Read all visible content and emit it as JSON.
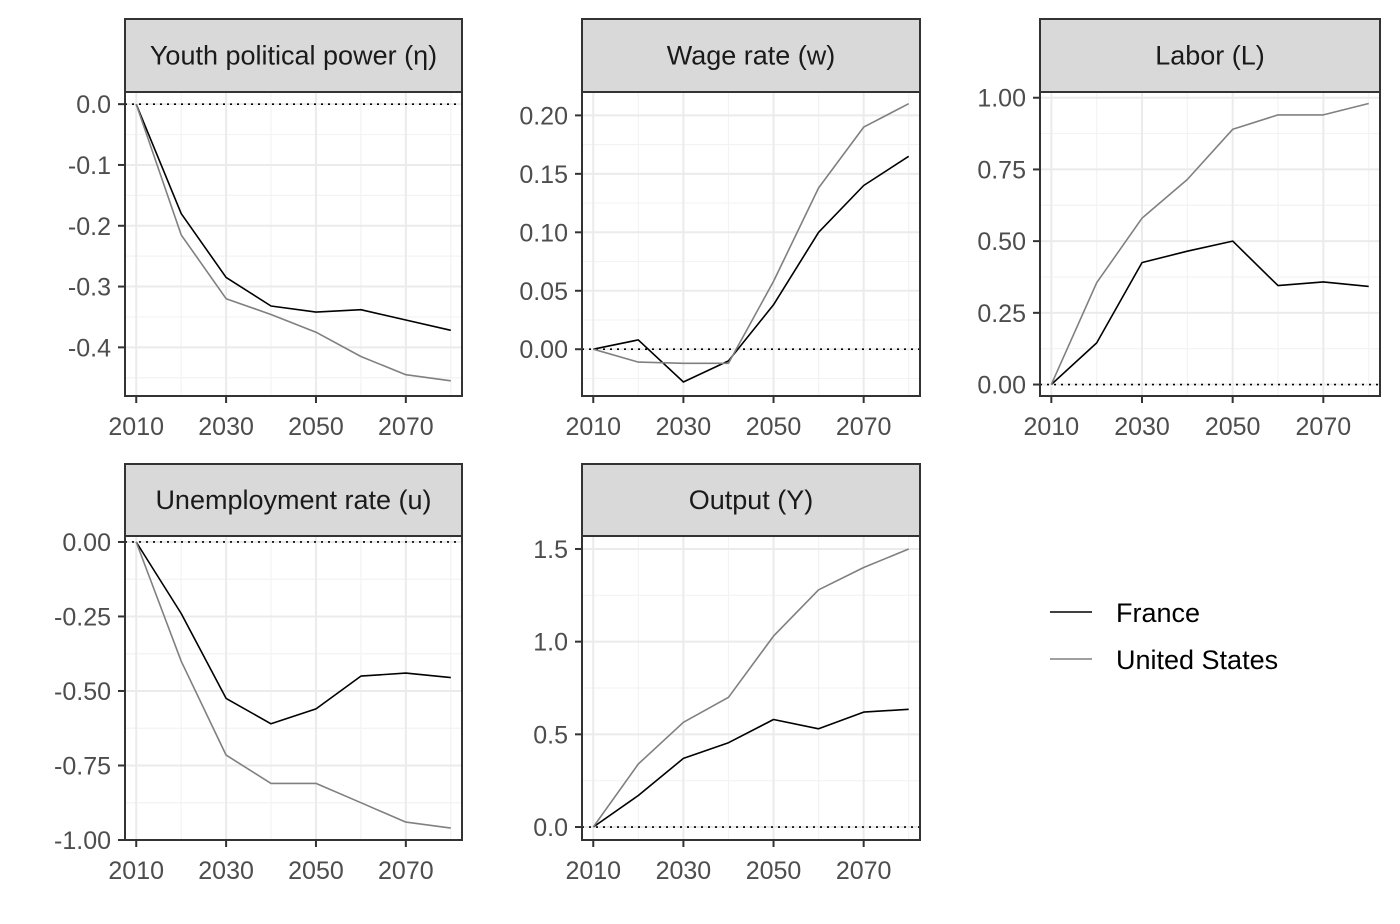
{
  "colors": {
    "France": "#000000",
    "United States": "#808080",
    "strip_fill": "#d9d9d9",
    "grid_major": "#ebebeb",
    "grid_minor": "#f3f3f3"
  },
  "legend": {
    "position": "right",
    "entries": [
      "France",
      "United States"
    ]
  },
  "chart_data": [
    {
      "type": "line",
      "title": "Youth political power (η)",
      "x": [
        2010,
        2020,
        2030,
        2040,
        2050,
        2060,
        2070,
        2080
      ],
      "xticks": [
        "2010",
        "2030",
        "2050",
        "2070"
      ],
      "ylim": [
        -0.48,
        0.02
      ],
      "yticks": [
        "0.0",
        "-0.1",
        "-0.2",
        "-0.3",
        "-0.4"
      ],
      "ytick_values": [
        0.0,
        -0.1,
        -0.2,
        -0.3,
        -0.4
      ],
      "reference_line": 0,
      "series": [
        {
          "name": "France",
          "values": [
            0.0,
            -0.18,
            -0.285,
            -0.332,
            -0.342,
            -0.338,
            -0.355,
            -0.372
          ]
        },
        {
          "name": "United States",
          "values": [
            0.0,
            -0.215,
            -0.32,
            -0.346,
            -0.375,
            -0.415,
            -0.445,
            -0.455
          ]
        }
      ]
    },
    {
      "type": "line",
      "title": "Wage rate (w)",
      "x": [
        2010,
        2020,
        2030,
        2040,
        2050,
        2060,
        2070,
        2080
      ],
      "xticks": [
        "2010",
        "2030",
        "2050",
        "2070"
      ],
      "ylim": [
        -0.04,
        0.22
      ],
      "yticks": [
        "0.20",
        "0.15",
        "0.10",
        "0.05",
        "0.00"
      ],
      "ytick_values": [
        0.2,
        0.15,
        0.1,
        0.05,
        0.0
      ],
      "reference_line": 0,
      "series": [
        {
          "name": "France",
          "values": [
            0.0,
            0.008,
            -0.028,
            -0.01,
            0.038,
            0.1,
            0.14,
            0.165
          ]
        },
        {
          "name": "United States",
          "values": [
            0.0,
            -0.011,
            -0.012,
            -0.012,
            0.058,
            0.138,
            0.19,
            0.21
          ]
        }
      ]
    },
    {
      "type": "line",
      "title": "Labor (L)",
      "x": [
        2010,
        2020,
        2030,
        2040,
        2050,
        2060,
        2070,
        2080
      ],
      "xticks": [
        "2010",
        "2030",
        "2050",
        "2070"
      ],
      "ylim": [
        -0.04,
        1.02
      ],
      "yticks": [
        "1.00",
        "0.75",
        "0.50",
        "0.25",
        "0.00"
      ],
      "ytick_values": [
        1.0,
        0.75,
        0.5,
        0.25,
        0.0
      ],
      "reference_line": 0,
      "series": [
        {
          "name": "France",
          "values": [
            0.0,
            0.145,
            0.425,
            0.465,
            0.5,
            0.345,
            0.358,
            0.342
          ]
        },
        {
          "name": "United States",
          "values": [
            0.0,
            0.355,
            0.58,
            0.715,
            0.89,
            0.94,
            0.94,
            0.98
          ]
        }
      ]
    },
    {
      "type": "line",
      "title": "Unemployment rate (u)",
      "x": [
        2010,
        2020,
        2030,
        2040,
        2050,
        2060,
        2070,
        2080
      ],
      "xticks": [
        "2010",
        "2030",
        "2050",
        "2070"
      ],
      "ylim": [
        -1.0,
        0.02
      ],
      "yticks": [
        "0.00",
        "-0.25",
        "-0.50",
        "-0.75",
        "-1.00"
      ],
      "ytick_values": [
        0.0,
        -0.25,
        -0.5,
        -0.75,
        -1.0
      ],
      "reference_line": 0,
      "series": [
        {
          "name": "France",
          "values": [
            0.0,
            -0.24,
            -0.525,
            -0.61,
            -0.56,
            -0.45,
            -0.44,
            -0.455
          ]
        },
        {
          "name": "United States",
          "values": [
            0.0,
            -0.4,
            -0.715,
            -0.81,
            -0.81,
            -0.875,
            -0.94,
            -0.96
          ]
        }
      ]
    },
    {
      "type": "line",
      "title": "Output (Y)",
      "x": [
        2010,
        2020,
        2030,
        2040,
        2050,
        2060,
        2070,
        2080
      ],
      "xticks": [
        "2010",
        "2030",
        "2050",
        "2070"
      ],
      "ylim": [
        -0.07,
        1.57
      ],
      "yticks": [
        "1.5",
        "1.0",
        "0.5",
        "0.0"
      ],
      "ytick_values": [
        1.5,
        1.0,
        0.5,
        0.0
      ],
      "reference_line": 0,
      "series": [
        {
          "name": "France",
          "values": [
            0.0,
            0.17,
            0.37,
            0.455,
            0.58,
            0.53,
            0.62,
            0.635
          ]
        },
        {
          "name": "United States",
          "values": [
            0.0,
            0.34,
            0.565,
            0.7,
            1.03,
            1.28,
            1.4,
            1.5
          ]
        }
      ]
    }
  ]
}
